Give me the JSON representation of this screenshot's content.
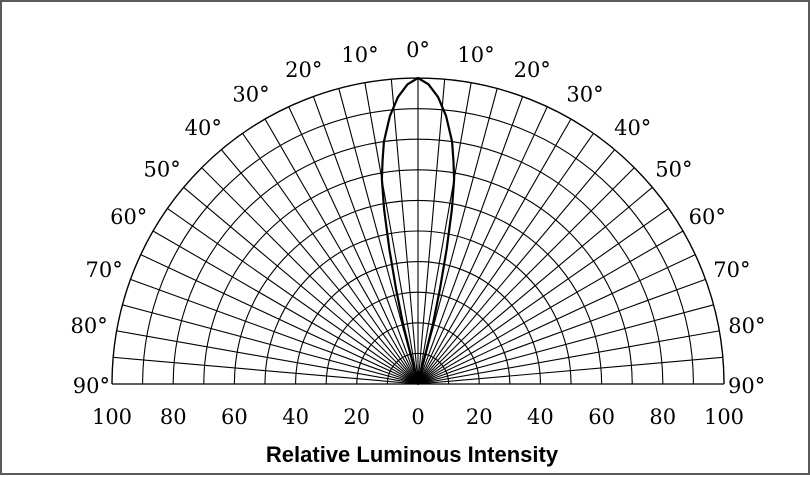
{
  "chart_data": {
    "type": "polar",
    "title": "",
    "xlabel": "Relative Luminous Intensity",
    "angle_range_deg": [
      -90,
      90
    ],
    "angle_step_deg": 10,
    "angle_labels": [
      "90°",
      "80°",
      "70°",
      "60°",
      "50°",
      "40°",
      "30°",
      "20°",
      "10°",
      "0°",
      "10°",
      "20°",
      "30°",
      "40°",
      "50°",
      "60°",
      "70°",
      "80°",
      "90°"
    ],
    "radial_range": [
      0,
      100
    ],
    "radial_tick_labels": [
      "100",
      "80",
      "60",
      "40",
      "20",
      "0",
      "20",
      "40",
      "60",
      "80",
      "100"
    ],
    "grid_rings": [
      10,
      20,
      30,
      40,
      50,
      60,
      70,
      80,
      90
    ],
    "grid_spokes_deg": 5,
    "grid": true,
    "series": [
      {
        "angles_deg": [
          -14,
          -13,
          -12,
          -11,
          -10,
          -9,
          -8,
          -6,
          -4,
          -2,
          0,
          2,
          4,
          6,
          8,
          9,
          10,
          11,
          12,
          13,
          14
        ],
        "values": [
          20,
          32,
          45,
          58,
          68,
          74,
          80,
          88,
          94,
          98,
          100,
          98,
          94,
          88,
          80,
          74,
          68,
          58,
          45,
          32,
          20
        ]
      }
    ]
  }
}
